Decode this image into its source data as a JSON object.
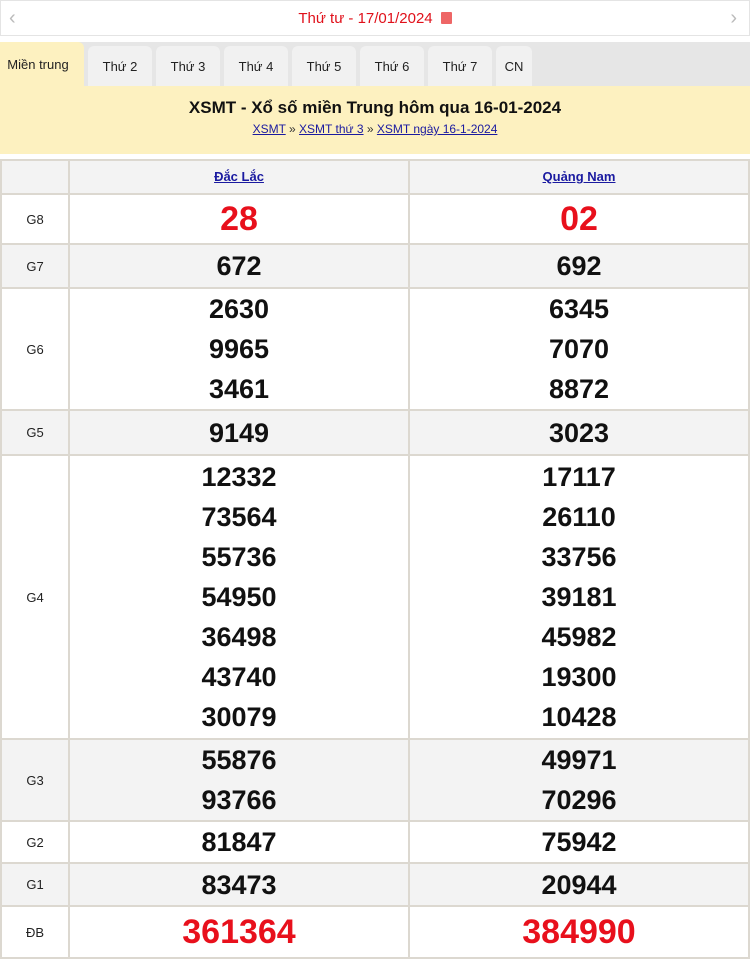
{
  "datebar": {
    "date_text": "Thứ tư -  17/01/2024",
    "prev": "‹",
    "next": "›",
    "calendar_icon": "calendar-icon"
  },
  "tabs": [
    "Miền trung",
    "Thứ 2",
    "Thứ 3",
    "Thứ 4",
    "Thứ 5",
    "Thứ 6",
    "Thứ 7",
    "CN"
  ],
  "banner": {
    "title": "XSMT - Xổ số miền Trung hôm qua 16-01-2024",
    "crumbs": [
      "XSMT",
      "XSMT thứ 3",
      "XSMT ngày 16-1-2024"
    ],
    "sep": " » "
  },
  "provinces": [
    "Đắc Lắc",
    "Quảng Nam"
  ],
  "rows": [
    {
      "label": "G8",
      "a": [
        "28"
      ],
      "b": [
        "02"
      ],
      "red": true,
      "gray": false
    },
    {
      "label": "G7",
      "a": [
        "672"
      ],
      "b": [
        "692"
      ],
      "gray": true
    },
    {
      "label": "G6",
      "a": [
        "2630",
        "9965",
        "3461"
      ],
      "b": [
        "6345",
        "7070",
        "8872"
      ],
      "gray": false
    },
    {
      "label": "G5",
      "a": [
        "9149"
      ],
      "b": [
        "3023"
      ],
      "gray": true
    },
    {
      "label": "G4",
      "a": [
        "12332",
        "73564",
        "55736",
        "54950",
        "36498",
        "43740",
        "30079"
      ],
      "b": [
        "17117",
        "26110",
        "33756",
        "39181",
        "45982",
        "19300",
        "10428"
      ],
      "gray": false
    },
    {
      "label": "G3",
      "a": [
        "55876",
        "93766"
      ],
      "b": [
        "49971",
        "70296"
      ],
      "gray": true
    },
    {
      "label": "G2",
      "a": [
        "81847"
      ],
      "b": [
        "75942"
      ],
      "gray": false
    },
    {
      "label": "G1",
      "a": [
        "83473"
      ],
      "b": [
        "20944"
      ],
      "gray": true
    },
    {
      "label": "ĐB",
      "a": [
        "361364"
      ],
      "b": [
        "384990"
      ],
      "red": true,
      "gray": false
    }
  ],
  "colors": {
    "red": "#e8101c",
    "link": "#1a1aa0",
    "banner": "#fdf1c0"
  }
}
